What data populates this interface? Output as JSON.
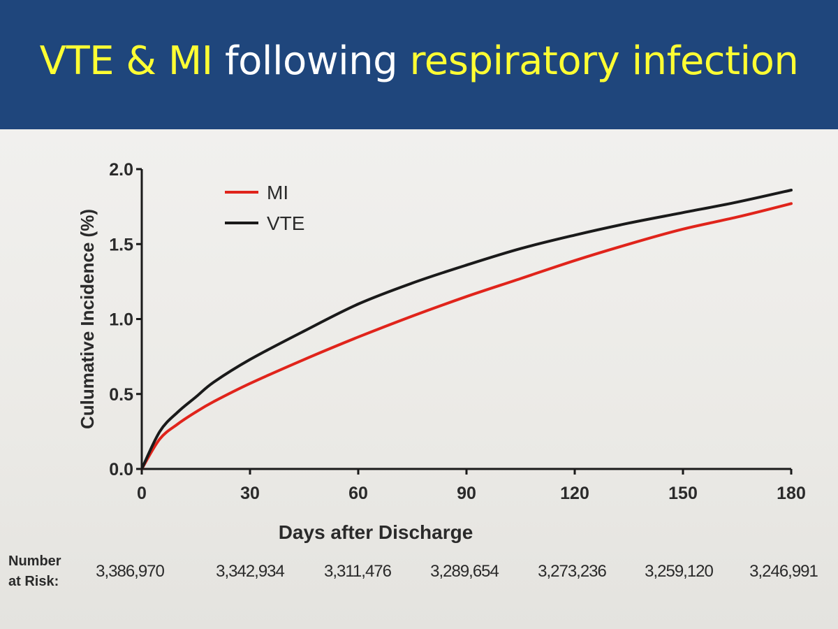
{
  "slide": {
    "title_parts": [
      {
        "text": "VTE & MI",
        "highlight": true
      },
      {
        "text": " following ",
        "highlight": false
      },
      {
        "text": "respiratory infection",
        "highlight": true
      }
    ]
  },
  "colors": {
    "banner": "#1f467c",
    "title_highlight": "#ffff33",
    "title_plain": "#ffffff",
    "mi_line": "#e0241b",
    "vte_line": "#1a1a1a"
  },
  "chart_data": {
    "type": "line",
    "xlabel": "Days after Discharge",
    "ylabel": "Culumative Incidence (%)",
    "xlim": [
      0,
      180
    ],
    "ylim": [
      0,
      2.0
    ],
    "x_ticks": [
      0,
      30,
      60,
      90,
      120,
      150,
      180
    ],
    "x_tick_labels": [
      "0",
      "30",
      "60",
      "90",
      "120",
      "150",
      "180"
    ],
    "y_ticks": [
      0,
      0.5,
      1.0,
      1.5,
      2.0
    ],
    "y_tick_labels": [
      "0.0",
      "0.5",
      "1.0",
      "1.5",
      "2.0"
    ],
    "grid": false,
    "legend_position": "top-left",
    "x": [
      0,
      5,
      10,
      15,
      20,
      30,
      45,
      60,
      75,
      90,
      105,
      120,
      135,
      150,
      165,
      180
    ],
    "series": [
      {
        "name": "MI",
        "color": "#e0241b",
        "values": [
          0.0,
          0.2,
          0.3,
          0.38,
          0.45,
          0.57,
          0.73,
          0.88,
          1.02,
          1.15,
          1.27,
          1.39,
          1.5,
          1.6,
          1.68,
          1.77
        ]
      },
      {
        "name": "VTE",
        "color": "#1a1a1a",
        "values": [
          0.0,
          0.25,
          0.38,
          0.48,
          0.58,
          0.73,
          0.92,
          1.1,
          1.24,
          1.36,
          1.47,
          1.56,
          1.64,
          1.71,
          1.78,
          1.86
        ]
      }
    ],
    "at_risk": {
      "label_line1": "Number",
      "label_line2": "at Risk:",
      "values": [
        "3,386,970",
        "3,342,934",
        "3,311,476",
        "3,289,654",
        "3,273,236",
        "3,259,120",
        "3,246,991"
      ]
    }
  }
}
